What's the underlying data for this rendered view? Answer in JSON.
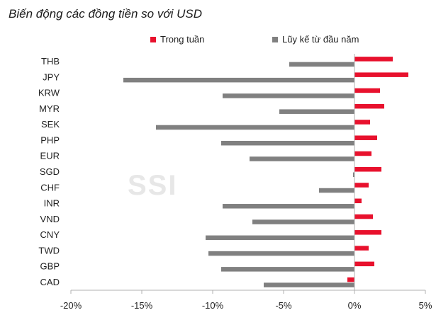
{
  "chart_data": {
    "type": "bar",
    "orientation": "horizontal",
    "title": "Biến động các đồng tiền so với USD",
    "watermark": "SSI",
    "categories": [
      "THB",
      "JPY",
      "KRW",
      "MYR",
      "SEK",
      "PHP",
      "EUR",
      "SGD",
      "CHF",
      "INR",
      "VND",
      "CNY",
      "TWD",
      "GBP",
      "CAD"
    ],
    "series": [
      {
        "name": "Trong tuần",
        "color": "#e8112d",
        "values": [
          2.7,
          3.8,
          1.8,
          2.1,
          1.1,
          1.6,
          1.2,
          1.9,
          1.0,
          0.5,
          1.3,
          1.9,
          1.0,
          1.4,
          -0.5
        ]
      },
      {
        "name": "Lũy kế từ đầu năm",
        "color": "#808080",
        "values": [
          -4.6,
          -16.3,
          -9.3,
          -5.3,
          -14.0,
          -9.4,
          -7.4,
          -0.1,
          -2.5,
          -9.3,
          -7.2,
          -10.5,
          -10.3,
          -9.4,
          -6.4
        ]
      }
    ],
    "xlim": [
      -20,
      5
    ],
    "xticks": [
      -20,
      -15,
      -10,
      -5,
      0,
      5
    ],
    "xtick_labels": [
      "-20%",
      "-15%",
      "-10%",
      "-5%",
      "0%",
      "5%"
    ],
    "legend_position": "top",
    "grid": false
  }
}
